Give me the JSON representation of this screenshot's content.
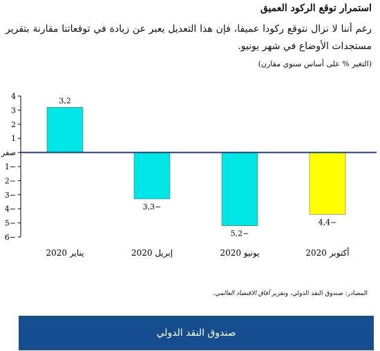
{
  "header": {
    "title": "استمرار توقع الركود العميق",
    "body": "رغم أننا لا نزال نتوقع ركودا عميقا، فإن هذا التعديل يعبر عن زيادة في توقعاتنا مقارنة بتقرير مستجدات الأوضاع في شهر يونيو.",
    "subtitle": "(التغير % على أساس سنوي مقارن)"
  },
  "chart_data": {
    "type": "bar",
    "categories": [
      "يناير 2020",
      "إبريل 2020",
      "يونيو 2020",
      "أكتوبر 2020"
    ],
    "values": [
      3.2,
      -3.3,
      -5.2,
      -4.4
    ],
    "data_labels": [
      "3,2",
      "3,3−",
      "5,2−",
      "4,4−"
    ],
    "bar_colors": [
      "#00e6e6",
      "#00e6e6",
      "#00e6e6",
      "#ffff00"
    ],
    "ylim": [
      -6,
      4
    ],
    "yticks": [
      -6,
      -5,
      -4,
      -3,
      -2,
      -1,
      0,
      1,
      2,
      3,
      4
    ],
    "ytick_labels": [
      "6−",
      "5−",
      "4−",
      "3−",
      "2−",
      "1−",
      "صفر",
      "1",
      "2",
      "3",
      "4"
    ],
    "grid": false,
    "legend": "none"
  },
  "source": {
    "prefix": "المصادر: صندوق النقد الدولي، وتقرير ",
    "italic": "آفاق الاقتصاد العالمي",
    "suffix": "."
  },
  "footer": {
    "label": "صندوق النقد الدولي"
  },
  "colors": {
    "footer_bg": "#154d8f",
    "bar_main": "#00e6e6",
    "bar_highlight": "#ffff00"
  }
}
